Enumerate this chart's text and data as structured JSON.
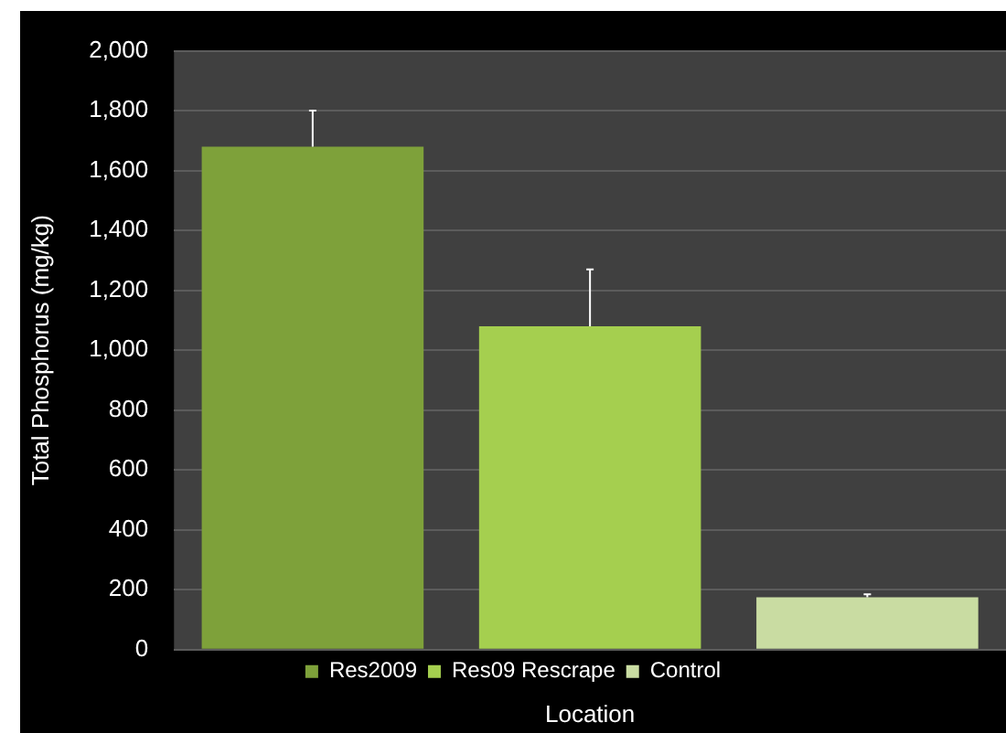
{
  "chart_data": {
    "type": "bar",
    "xlabel": "Location",
    "ylabel": "Total Phosphorus (mg/kg)",
    "categories": [
      null,
      null,
      null
    ],
    "series": [
      {
        "name": "Res2009",
        "color": "#7ea13a",
        "values": [
          1680,
          null,
          null
        ],
        "errors": [
          [
            1680,
            1800
          ],
          null,
          null
        ]
      },
      {
        "name": "Res09 Rescrape",
        "color": "#a5cf4f",
        "values": [
          null,
          1080,
          null
        ],
        "errors": [
          null,
          [
            1080,
            1270
          ],
          null
        ]
      },
      {
        "name": "Control",
        "color": "#c9dca2",
        "values": [
          null,
          null,
          175
        ],
        "errors": [
          null,
          null,
          [
            175,
            185
          ]
        ]
      }
    ],
    "ylim": [
      0,
      2000
    ],
    "yticks": [
      {
        "value": 0,
        "label": "0"
      },
      {
        "value": 200,
        "label": "200"
      },
      {
        "value": 400,
        "label": "400"
      },
      {
        "value": 600,
        "label": "600"
      },
      {
        "value": 800,
        "label": "800"
      },
      {
        "value": 1000,
        "label": "1,000"
      },
      {
        "value": 1200,
        "label": "1,200"
      },
      {
        "value": 1400,
        "label": "1,400"
      },
      {
        "value": 1600,
        "label": "1,600"
      },
      {
        "value": 1800,
        "label": "1,800"
      },
      {
        "value": 2000,
        "label": "2,000"
      }
    ],
    "grid": "y",
    "legend": "bottom",
    "tick_labels": "y"
  }
}
